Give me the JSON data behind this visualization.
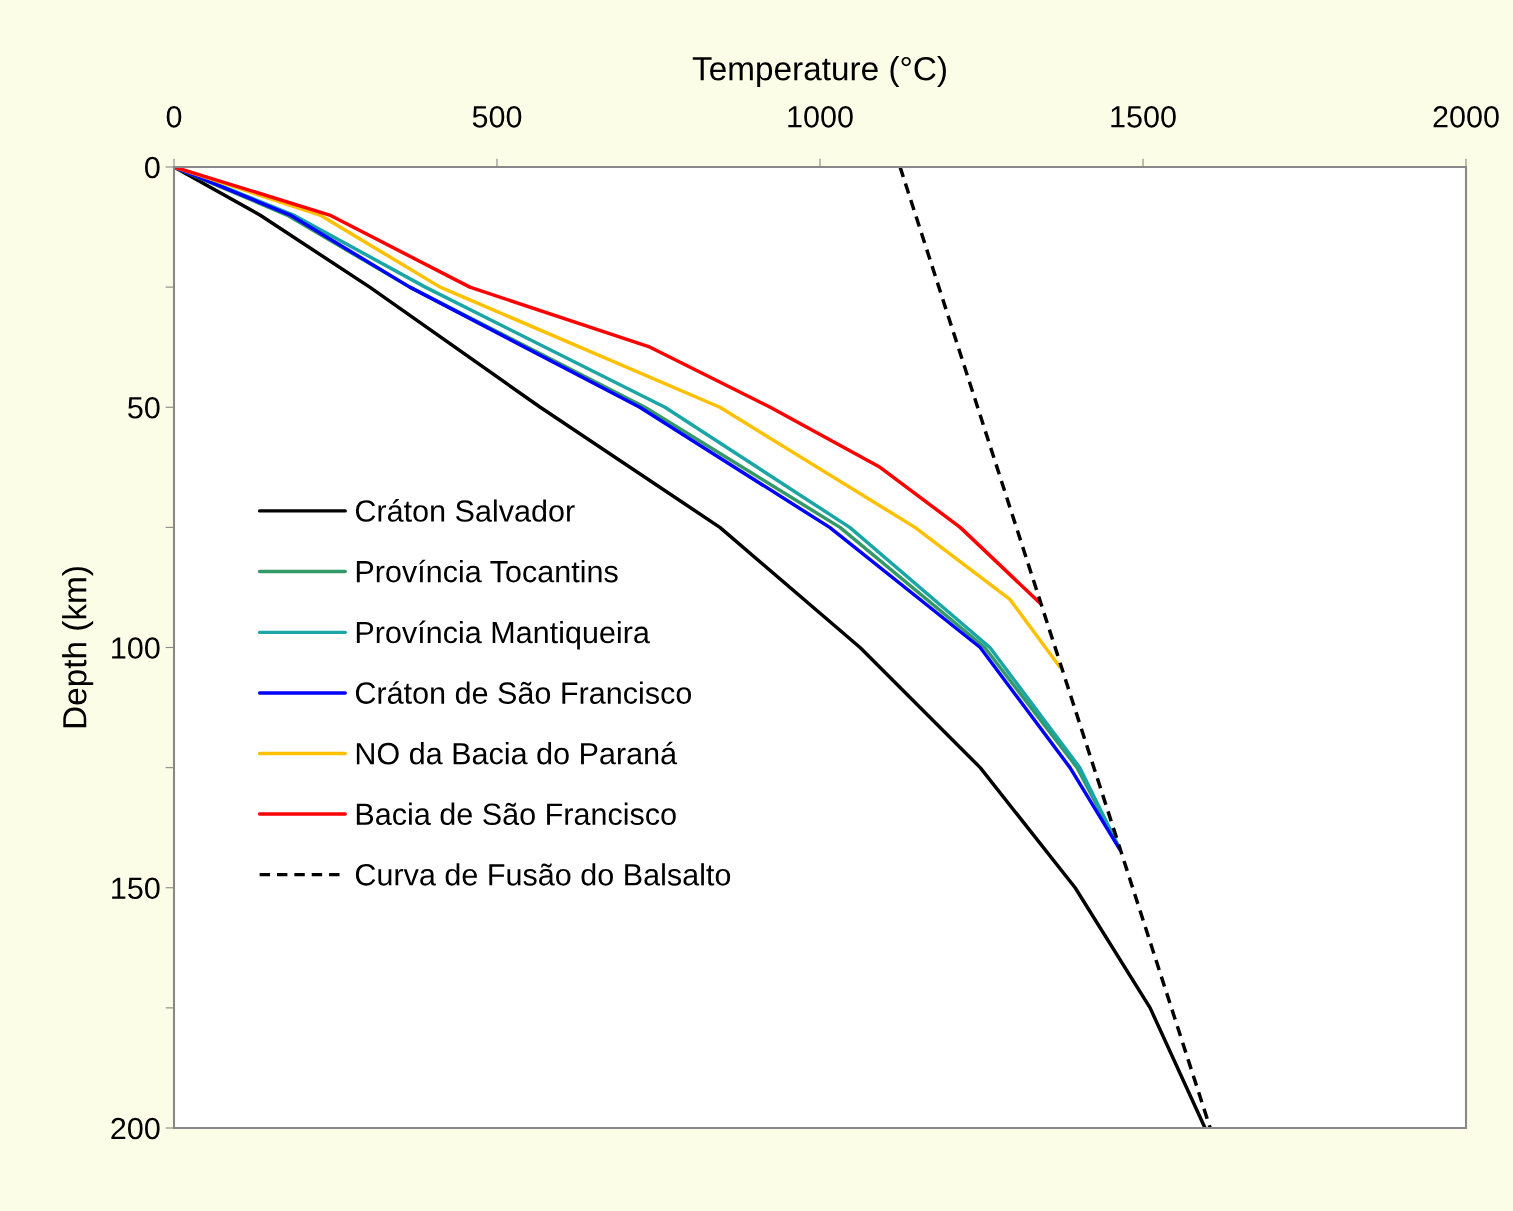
{
  "chart_data": {
    "type": "line",
    "xlabel": "Temperature (°C)",
    "ylabel": "Depth (km)",
    "xlim": [
      0,
      2000
    ],
    "xticks": [
      0,
      500,
      1000,
      1500,
      2000
    ],
    "ylim": [
      200,
      0
    ],
    "yticks": [
      0,
      {
        "value": 25,
        "label": null
      },
      50,
      {
        "value": 75,
        "label": null
      },
      100,
      {
        "value": 125,
        "label": null
      },
      150,
      {
        "value": 175,
        "label": null
      },
      200
    ],
    "grid": false,
    "legend": "left",
    "marker": "none",
    "series": [
      {
        "name": "Cráton Salvador",
        "color": "#000000",
        "x": [
          0,
          133,
          303,
          567,
          845,
          1062,
          1248,
          1395,
          1511,
          1596
        ],
        "values": [
          0,
          10,
          25,
          50,
          75,
          100,
          125,
          150,
          175,
          200
        ]
      },
      {
        "name": "Província Tocantins",
        "color": "#339966",
        "x": [
          0,
          175,
          365,
          729,
          1031,
          1255,
          1398,
          1461
        ],
        "values": [
          0,
          10,
          25,
          50,
          75,
          100,
          125,
          141
        ]
      },
      {
        "name": "Província Mantiqueira",
        "color": "#1aa6a6",
        "x": [
          0,
          185,
          389,
          760,
          1046,
          1263,
          1402,
          1457
        ],
        "values": [
          0,
          10,
          25,
          50,
          75,
          100,
          125,
          140
        ]
      },
      {
        "name": "Cráton de São Francisco",
        "color": "#0000ff",
        "x": [
          0,
          180,
          365,
          721,
          1015,
          1248,
          1387,
          1464
        ],
        "values": [
          0,
          10,
          25,
          50,
          75,
          100,
          125,
          142
        ]
      },
      {
        "name": "NO da Bacia do Paraná",
        "color": "#ffc000",
        "x": [
          0,
          226,
          412,
          845,
          1147,
          1294,
          1371
        ],
        "values": [
          0,
          10,
          25,
          50,
          75,
          90,
          104
        ]
      },
      {
        "name": "Bacia de São Francisco",
        "color": "#ff0000",
        "x": [
          0,
          241,
          458,
          737,
          923,
          1093,
          1217,
          1340
        ],
        "values": [
          0,
          10,
          25,
          37.5,
          50,
          62.5,
          75,
          90.7
        ]
      },
      {
        "name": "Curva de Fusão do Balsalto",
        "color": "#000000",
        "line_style": "dashed",
        "x": [
          1124,
          1604
        ],
        "values": [
          0,
          200
        ]
      }
    ]
  }
}
